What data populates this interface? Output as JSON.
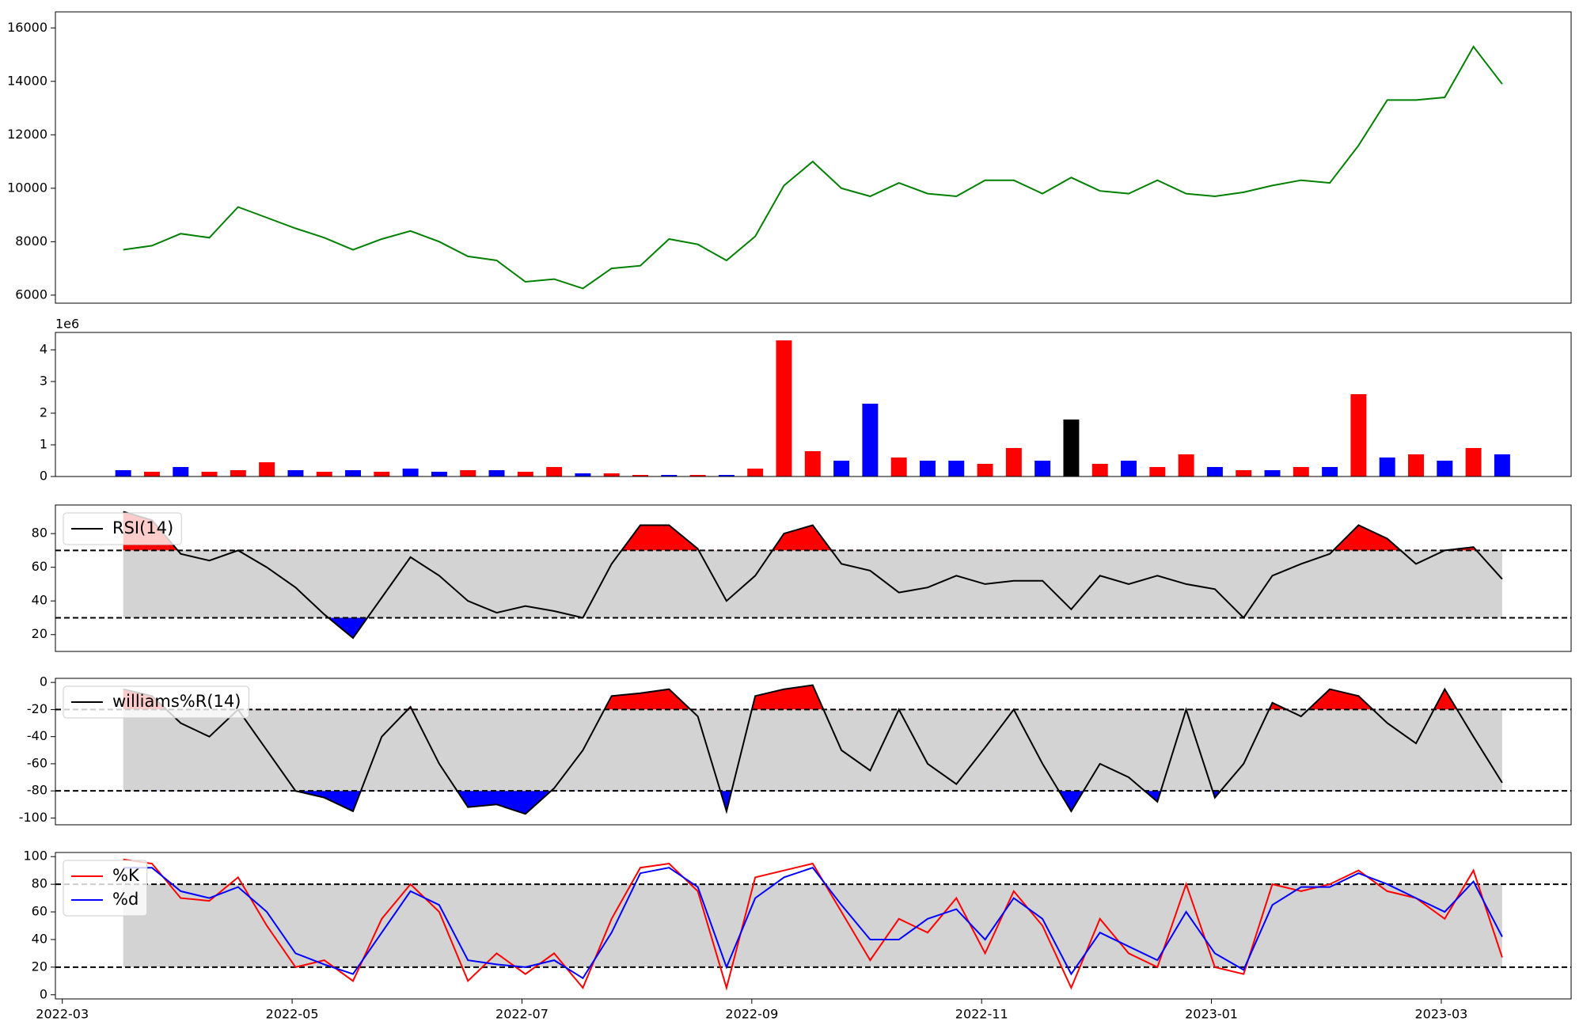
{
  "chart_data": [
    {
      "type": "line",
      "x": [
        0.53,
        0.78,
        1.03,
        1.28,
        1.53,
        1.78,
        2.03,
        2.28,
        2.53,
        2.78,
        3.03,
        3.28,
        3.53,
        3.78,
        4.03,
        4.28,
        4.53,
        4.78,
        5.03,
        5.28,
        5.53,
        5.78,
        6.03,
        6.28,
        6.53,
        6.78,
        7.03,
        7.28,
        7.53,
        7.78,
        8.03,
        8.28,
        8.53,
        8.78,
        9.03,
        9.28,
        9.53,
        9.78,
        10.03,
        10.28,
        10.53,
        10.78,
        11.03,
        11.28,
        11.53,
        11.78,
        12.03,
        12.28,
        12.53
      ],
      "xlim": [
        -0.06,
        13.13
      ],
      "series": [
        {
          "color": "#008000",
          "values": [
            7700,
            7850,
            8300,
            8150,
            9300,
            8900,
            8500,
            8150,
            7700,
            8100,
            8400,
            8000,
            7450,
            7300,
            6500,
            6600,
            6250,
            7000,
            7100,
            8100,
            7900,
            7300,
            8200,
            10100,
            11000,
            10000,
            9700,
            10200,
            9800,
            9700,
            10300,
            10300,
            9800,
            10400,
            9900,
            9800,
            10300,
            9800,
            9700,
            9850,
            10100,
            10300,
            10200,
            11600,
            13300,
            13300,
            13400,
            15300,
            13900
          ]
        }
      ],
      "ylim": [
        5700,
        16600
      ],
      "yticks": [
        6000,
        8000,
        10000,
        12000,
        14000,
        16000
      ]
    },
    {
      "type": "bar",
      "x": [
        0.53,
        0.78,
        1.03,
        1.28,
        1.53,
        1.78,
        2.03,
        2.28,
        2.53,
        2.78,
        3.03,
        3.28,
        3.53,
        3.78,
        4.03,
        4.28,
        4.53,
        4.78,
        5.03,
        5.28,
        5.53,
        5.78,
        6.03,
        6.28,
        6.53,
        6.78,
        7.03,
        7.28,
        7.53,
        7.78,
        8.03,
        8.28,
        8.53,
        8.78,
        9.03,
        9.28,
        9.53,
        9.78,
        10.03,
        10.28,
        10.53,
        10.78,
        11.03,
        11.28,
        11.53,
        11.78,
        12.03,
        12.28,
        12.53
      ],
      "xlim": [
        -0.06,
        13.13
      ],
      "values": [
        0.2,
        0.15,
        0.3,
        0.15,
        0.2,
        0.45,
        0.2,
        0.15,
        0.2,
        0.15,
        0.25,
        0.15,
        0.2,
        0.2,
        0.15,
        0.3,
        0.1,
        0.1,
        0.05,
        0.05,
        0.05,
        0.05,
        0.25,
        4.3,
        0.8,
        0.5,
        2.3,
        0.6,
        0.5,
        0.5,
        0.4,
        0.9,
        0.5,
        1.8,
        0.4,
        0.5,
        0.3,
        0.7,
        0.3,
        0.2,
        0.2,
        0.3,
        0.3,
        2.6,
        0.6,
        0.7,
        0.5,
        0.9,
        0.7
      ],
      "colors": [
        "blue",
        "red",
        "blue",
        "red",
        "red",
        "red",
        "blue",
        "red",
        "blue",
        "red",
        "blue",
        "blue",
        "red",
        "blue",
        "red",
        "red",
        "blue",
        "red",
        "red",
        "blue",
        "red",
        "blue",
        "red",
        "red",
        "red",
        "blue",
        "blue",
        "red",
        "blue",
        "blue",
        "red",
        "red",
        "blue",
        "black",
        "red",
        "blue",
        "red",
        "red",
        "blue",
        "red",
        "blue",
        "red",
        "blue",
        "red",
        "blue",
        "red",
        "blue",
        "red",
        "blue"
      ],
      "offset_label": "1e6",
      "ylim": [
        0,
        4.55
      ],
      "yticks": [
        0,
        1,
        2,
        3,
        4
      ]
    },
    {
      "type": "oscillator",
      "x": [
        0.53,
        0.78,
        1.03,
        1.28,
        1.53,
        1.78,
        2.03,
        2.28,
        2.53,
        2.78,
        3.03,
        3.28,
        3.53,
        3.78,
        4.03,
        4.28,
        4.53,
        4.78,
        5.03,
        5.28,
        5.53,
        5.78,
        6.03,
        6.28,
        6.53,
        6.78,
        7.03,
        7.28,
        7.53,
        7.78,
        8.03,
        8.28,
        8.53,
        8.78,
        9.03,
        9.28,
        9.53,
        9.78,
        10.03,
        10.28,
        10.53,
        10.78,
        11.03,
        11.28,
        11.53,
        11.78,
        12.03,
        12.28,
        12.53
      ],
      "xlim": [
        -0.06,
        13.13
      ],
      "series": [
        {
          "name": "RSI(14)",
          "color": "#000000",
          "values": [
            93,
            88,
            68,
            64,
            70,
            60,
            48,
            32,
            18,
            42,
            66,
            55,
            40,
            33,
            37,
            34,
            30,
            62,
            85,
            85,
            71,
            40,
            55,
            80,
            85,
            62,
            58,
            45,
            48,
            55,
            50,
            52,
            52,
            35,
            55,
            50,
            55,
            50,
            47,
            30,
            55,
            62,
            68,
            85,
            77,
            62,
            70,
            72,
            53
          ]
        }
      ],
      "upper": 70,
      "lower": 30,
      "upper_color": "#ff0000",
      "lower_color": "#0000ff",
      "band_color": "#d3d3d3",
      "legend": "upper left",
      "ylim": [
        10,
        97
      ],
      "yticks": [
        20,
        40,
        60,
        80
      ]
    },
    {
      "type": "oscillator",
      "x": [
        0.53,
        0.78,
        1.03,
        1.28,
        1.53,
        1.78,
        2.03,
        2.28,
        2.53,
        2.78,
        3.03,
        3.28,
        3.53,
        3.78,
        4.03,
        4.28,
        4.53,
        4.78,
        5.03,
        5.28,
        5.53,
        5.78,
        6.03,
        6.28,
        6.53,
        6.78,
        7.03,
        7.28,
        7.53,
        7.78,
        8.03,
        8.28,
        8.53,
        8.78,
        9.03,
        9.28,
        9.53,
        9.78,
        10.03,
        10.28,
        10.53,
        10.78,
        11.03,
        11.28,
        11.53,
        11.78,
        12.03,
        12.28,
        12.53
      ],
      "xlim": [
        -0.06,
        13.13
      ],
      "series": [
        {
          "name": "williams%R(14)",
          "color": "#000000",
          "values": [
            -5,
            -10,
            -30,
            -40,
            -20,
            -50,
            -80,
            -85,
            -95,
            -40,
            -18,
            -60,
            -92,
            -90,
            -97,
            -78,
            -50,
            -10,
            -8,
            -5,
            -25,
            -95,
            -10,
            -5,
            -2,
            -50,
            -65,
            -20,
            -60,
            -75,
            -48,
            -20,
            -60,
            -95,
            -60,
            -70,
            -88,
            -20,
            -85,
            -60,
            -15,
            -25,
            -5,
            -10,
            -30,
            -45,
            -5,
            -40,
            -74
          ]
        }
      ],
      "upper": -20,
      "lower": -80,
      "upper_color": "#ff0000",
      "lower_color": "#0000ff",
      "band_color": "#d3d3d3",
      "legend": "upper left",
      "ylim": [
        -105,
        3
      ],
      "yticks": [
        -100,
        -80,
        -60,
        -40,
        -20,
        0
      ]
    },
    {
      "type": "oscillator",
      "x": [
        0.53,
        0.78,
        1.03,
        1.28,
        1.53,
        1.78,
        2.03,
        2.28,
        2.53,
        2.78,
        3.03,
        3.28,
        3.53,
        3.78,
        4.03,
        4.28,
        4.53,
        4.78,
        5.03,
        5.28,
        5.53,
        5.78,
        6.03,
        6.28,
        6.53,
        6.78,
        7.03,
        7.28,
        7.53,
        7.78,
        8.03,
        8.28,
        8.53,
        8.78,
        9.03,
        9.28,
        9.53,
        9.78,
        10.03,
        10.28,
        10.53,
        10.78,
        11.03,
        11.28,
        11.53,
        11.78,
        12.03,
        12.28,
        12.53
      ],
      "xlim": [
        -0.06,
        13.13
      ],
      "xticks": [
        {
          "value": 0,
          "label": "2022-03"
        },
        {
          "value": 2,
          "label": "2022-05"
        },
        {
          "value": 4,
          "label": "2022-07"
        },
        {
          "value": 6,
          "label": "2022-09"
        },
        {
          "value": 8,
          "label": "2022-11"
        },
        {
          "value": 10,
          "label": "2023-01"
        },
        {
          "value": 12,
          "label": "2023-03"
        }
      ],
      "series": [
        {
          "name": "%K",
          "color": "#ff0000",
          "values": [
            98,
            95,
            70,
            68,
            85,
            50,
            20,
            25,
            10,
            55,
            80,
            60,
            10,
            30,
            15,
            30,
            5,
            55,
            92,
            95,
            75,
            5,
            85,
            90,
            95,
            60,
            25,
            55,
            45,
            70,
            30,
            75,
            50,
            5,
            55,
            30,
            20,
            80,
            20,
            15,
            80,
            75,
            80,
            90,
            75,
            70,
            55,
            90,
            27
          ]
        },
        {
          "name": "%d",
          "color": "#0000ff",
          "values": [
            92,
            92,
            75,
            70,
            78,
            60,
            30,
            22,
            15,
            45,
            75,
            65,
            25,
            22,
            20,
            25,
            12,
            45,
            88,
            92,
            78,
            20,
            70,
            85,
            92,
            65,
            40,
            40,
            55,
            62,
            40,
            70,
            55,
            15,
            45,
            35,
            25,
            60,
            30,
            18,
            65,
            78,
            78,
            88,
            80,
            70,
            60,
            82,
            42
          ]
        }
      ],
      "upper": 80,
      "lower": 20,
      "band_color": "#d3d3d3",
      "legend": "upper left",
      "ylim": [
        -3,
        103
      ],
      "yticks": [
        0,
        20,
        40,
        60,
        80,
        100
      ]
    }
  ]
}
